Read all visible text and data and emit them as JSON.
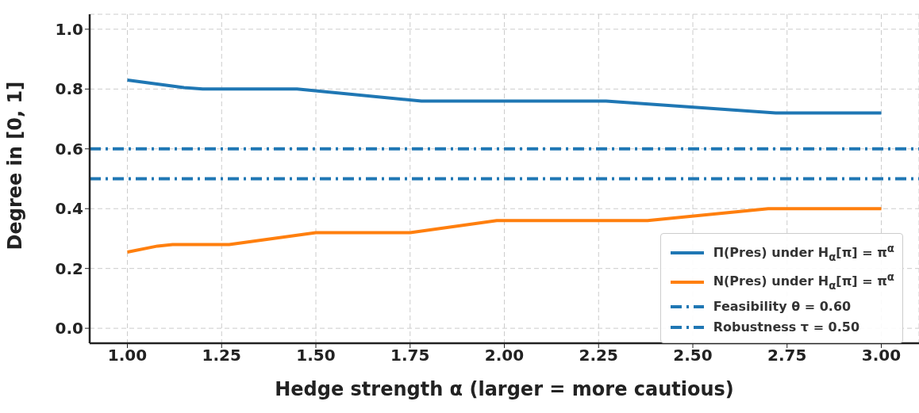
{
  "chart_data": {
    "type": "line",
    "xlabel": "Hedge strength α (larger = more cautious)",
    "ylabel": "Degree in [0, 1]",
    "series": [
      {
        "name": "Π(Pres) under H$_{α}$[π] = π$^{α}$",
        "color": "#1f77b4",
        "x": [
          1.0,
          1.15,
          1.2,
          1.45,
          1.78,
          2.27,
          2.72,
          3.0
        ],
        "values": [
          0.83,
          0.805,
          0.8,
          0.8,
          0.76,
          0.76,
          0.72,
          0.72
        ]
      },
      {
        "name": "N(Pres) under H$_{α}$[π] = π$^{α}$",
        "color": "#ff7f0e",
        "x": [
          1.0,
          1.08,
          1.12,
          1.27,
          1.5,
          1.75,
          1.98,
          2.38,
          2.7,
          3.0
        ],
        "values": [
          0.255,
          0.275,
          0.28,
          0.28,
          0.32,
          0.32,
          0.36,
          0.36,
          0.4,
          0.4
        ]
      }
    ],
    "ref_lines": [
      {
        "axis": "y",
        "value": 0.6,
        "label": "Feasibility θ = 0.60",
        "color": "#1f77b4",
        "line_style": "dashed"
      },
      {
        "axis": "y",
        "value": 0.5,
        "label": "Robustness τ = 0.50",
        "color": "#1f77b4",
        "line_style": "dashed"
      }
    ],
    "xlim": [
      0.9,
      3.1
    ],
    "xticks": [
      {
        "value": 1,
        "label": "1.00"
      },
      {
        "value": 1.25,
        "label": "1.25"
      },
      {
        "value": 1.5,
        "label": "1.50"
      },
      {
        "value": 1.75,
        "label": "1.75"
      },
      {
        "value": 2,
        "label": "2.00"
      },
      {
        "value": 2.25,
        "label": "2.25"
      },
      {
        "value": 2.5,
        "label": "2.50"
      },
      {
        "value": 2.75,
        "label": "2.75"
      },
      {
        "value": 3,
        "label": "3.00"
      }
    ],
    "ylim": [
      -0.05,
      1.05
    ],
    "yticks": [
      {
        "value": 0,
        "label": "0.0"
      },
      {
        "value": 0.2,
        "label": "0.2"
      },
      {
        "value": 0.4,
        "label": "0.4"
      },
      {
        "value": 0.6,
        "label": "0.6"
      },
      {
        "value": 0.8,
        "label": "0.8"
      },
      {
        "value": 1,
        "label": "1.0"
      }
    ],
    "grid": true,
    "legend": "bottom right",
    "line_style": "solid"
  }
}
